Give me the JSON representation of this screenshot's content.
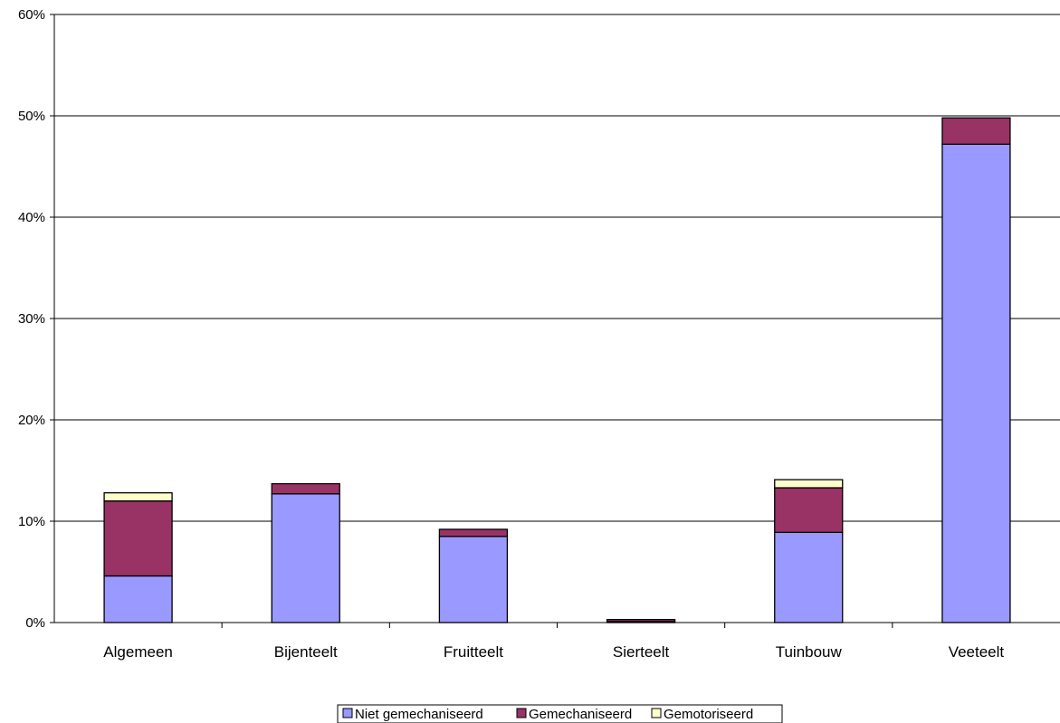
{
  "chart_data": {
    "type": "bar",
    "stacked": true,
    "categories": [
      "Algemeen",
      "Bijenteelt",
      "Fruitteelt",
      "Sierteelt",
      "Tuinbouw",
      "Veeteelt"
    ],
    "series": [
      {
        "name": "Niet gemechaniseerd",
        "color": "#9999FF",
        "values": [
          4.6,
          12.7,
          8.5,
          0.1,
          8.9,
          47.2
        ]
      },
      {
        "name": "Gemechaniseerd",
        "color": "#993366",
        "values": [
          7.4,
          1.0,
          0.7,
          0.2,
          4.4,
          2.6
        ]
      },
      {
        "name": "Gemotoriseerd",
        "color": "#FFFFCC",
        "values": [
          0.8,
          0.0,
          0.0,
          0.0,
          0.8,
          0.0
        ]
      }
    ],
    "y_ticks": [
      "0%",
      "10%",
      "20%",
      "30%",
      "40%",
      "50%",
      "60%"
    ],
    "ylim": [
      0,
      60
    ],
    "grid": true,
    "legend_position": "bottom-center"
  }
}
